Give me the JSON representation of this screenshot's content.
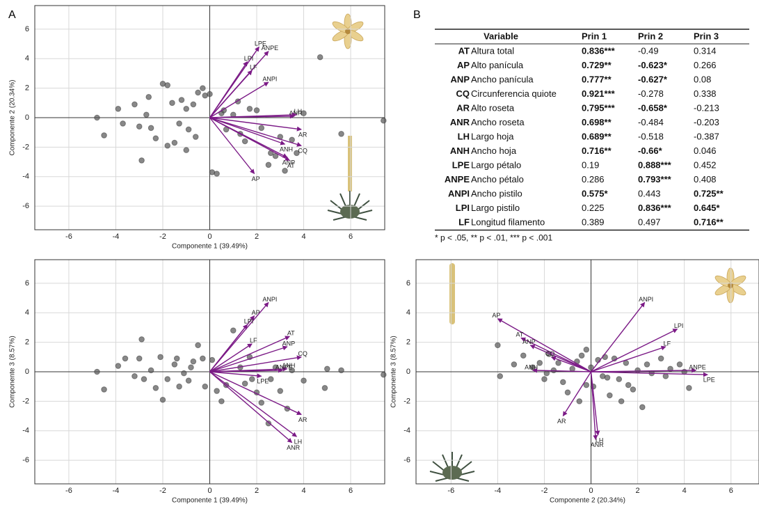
{
  "panel_labels": [
    "A",
    "B"
  ],
  "chart_data": [
    {
      "type": "biplot",
      "x_label": "Componente 1 (39.49%)",
      "y_label": "Componente 2 (20.34%)",
      "xlim": [
        -7.45,
        7.45
      ],
      "ylim": [
        -7.6,
        7.6
      ],
      "xticks": [
        -6,
        -4,
        -2,
        0,
        2,
        4,
        6
      ],
      "yticks": [
        -6,
        -4,
        -2,
        0,
        2,
        4,
        6
      ],
      "grid": true,
      "point_color": "#555555",
      "arrow_color": "#7b1a86",
      "points": {
        "x": [
          -4.8,
          -4.5,
          -3.7,
          -3.9,
          -3.2,
          -3.0,
          -2.9,
          -2.6,
          -2.5,
          -2.3,
          -2.0,
          -1.8,
          -1.5,
          -1.3,
          -1.2,
          -1.0,
          -0.9,
          -0.7,
          -0.5,
          -0.3,
          -0.2,
          0.0,
          0.1,
          0.3,
          0.5,
          0.7,
          1.0,
          1.3,
          1.5,
          1.7,
          2.0,
          2.2,
          2.5,
          2.8,
          3.0,
          3.2,
          3.5,
          4.0,
          4.7,
          5.6,
          7.4,
          -1.0,
          -1.8,
          -0.6,
          -2.7,
          -1.6,
          0.6,
          1.2,
          2.6,
          3.7
        ],
        "y": [
          0,
          -1.2,
          -0.4,
          0.6,
          0.9,
          -0.6,
          -2.9,
          1.4,
          -0.7,
          -1.4,
          2.3,
          2.2,
          -1.7,
          -0.4,
          1.2,
          0.6,
          -0.8,
          0.9,
          1.7,
          2.0,
          1.5,
          1.6,
          -3.7,
          -3.8,
          0.3,
          -0.8,
          0.2,
          -1.1,
          -1.6,
          0.6,
          0.5,
          -0.7,
          -3.2,
          -2.6,
          -1.3,
          -3.6,
          -1.5,
          0.3,
          4.1,
          -1.1,
          -0.2,
          -2.2,
          -1.9,
          -1.3,
          0.2,
          1.0,
          0.5,
          1.1,
          -2.4,
          -2.4
        ]
      },
      "loadings": {
        "labels": [
          "LPE",
          "ANPE",
          "LPI",
          "LF",
          "ANPI",
          "ANR",
          "LH",
          "AR",
          "ANH",
          "CQ",
          "ANP",
          "AT",
          "AP"
        ],
        "x": [
          2.1,
          2.5,
          1.6,
          1.8,
          2.5,
          3.6,
          3.7,
          3.9,
          3.2,
          3.9,
          3.3,
          3.4,
          1.9
        ],
        "y": [
          4.8,
          4.5,
          3.8,
          3.2,
          2.4,
          0.1,
          0.2,
          -0.8,
          -1.8,
          -1.9,
          -2.7,
          -2.9,
          -3.8
        ]
      }
    },
    {
      "type": "biplot",
      "x_label": "Componente 1 (39.49%)",
      "y_label": "Componente 3 (8.57%)",
      "xlim": [
        -7.45,
        7.45
      ],
      "ylim": [
        -7.6,
        7.6
      ],
      "xticks": [
        -6,
        -4,
        -2,
        0,
        2,
        4,
        6
      ],
      "yticks": [
        -6,
        -4,
        -2,
        0,
        2,
        4,
        6
      ],
      "grid": true,
      "point_color": "#555555",
      "arrow_color": "#7b1a86",
      "points": {
        "x": [
          -4.8,
          -4.5,
          -3.9,
          -3.6,
          -3.2,
          -3.0,
          -2.8,
          -2.9,
          -2.5,
          -2.3,
          -2.0,
          -1.8,
          -1.5,
          -1.4,
          -1.3,
          -1.1,
          -0.9,
          -0.7,
          -0.5,
          -0.3,
          -0.2,
          0.1,
          0.3,
          0.5,
          0.7,
          1.0,
          1.3,
          1.5,
          1.8,
          2.0,
          2.2,
          2.5,
          2.8,
          3.0,
          3.3,
          3.5,
          4.0,
          4.9,
          5.0,
          5.6,
          7.4,
          -2.1,
          -0.8,
          1.7,
          2.6
        ],
        "y": [
          0,
          -1.2,
          0.4,
          0.9,
          -0.3,
          0.9,
          -0.5,
          2.2,
          0.1,
          -1.1,
          -1.9,
          -0.5,
          0.5,
          0.9,
          -1.0,
          -0.1,
          -0.6,
          0.7,
          1.8,
          0.9,
          -1.0,
          0.8,
          -1.3,
          -2.0,
          -0.9,
          2.8,
          0.3,
          -0.8,
          -0.5,
          -1.4,
          -2.1,
          -3.5,
          0.3,
          -1.3,
          -2.5,
          0.1,
          -0.6,
          -1.1,
          0.2,
          0.1,
          -0.2,
          1.0,
          0.3,
          1.0,
          -0.5
        ]
      },
      "loadings": {
        "labels": [
          "ANPI",
          "AP",
          "LPI",
          "AT",
          "LF",
          "ANP",
          "CQ",
          "ANH",
          "ANPE",
          "LPE",
          "AR",
          "LH",
          "ANR"
        ],
        "x": [
          2.5,
          1.9,
          1.6,
          3.4,
          1.8,
          3.3,
          3.9,
          3.3,
          3.1,
          2.2,
          3.9,
          3.7,
          3.5
        ],
        "y": [
          4.7,
          3.8,
          3.2,
          2.4,
          1.9,
          1.7,
          1.0,
          0.2,
          0.1,
          -0.3,
          -2.9,
          -4.4,
          -4.8
        ]
      }
    },
    {
      "type": "biplot",
      "x_label": "Componente 2 (20.34%)",
      "y_label": "Componente 3 (8.57%)",
      "xlim": [
        -7.5,
        7.2
      ],
      "ylim": [
        -7.6,
        7.6
      ],
      "xticks": [
        -6,
        -4,
        -2,
        0,
        2,
        4,
        6
      ],
      "yticks": [
        -6,
        -4,
        -2,
        0,
        2,
        4,
        6
      ],
      "grid": true,
      "point_color": "#555555",
      "arrow_color": "#7b1a86",
      "points": {
        "x": [
          -4.0,
          -3.9,
          -3.3,
          -2.9,
          -2.5,
          -2.2,
          -2.0,
          -1.8,
          -1.6,
          -1.4,
          -1.2,
          -1.0,
          -0.8,
          -0.6,
          -0.5,
          -0.4,
          -0.2,
          0.0,
          0.1,
          0.3,
          0.5,
          0.6,
          0.8,
          1.0,
          1.2,
          1.3,
          1.5,
          1.8,
          2.0,
          2.2,
          2.4,
          2.6,
          3.0,
          3.2,
          3.4,
          3.8,
          4.2,
          4.0,
          -0.2,
          0.7,
          -1.9,
          1.6
        ],
        "y": [
          1.8,
          -0.3,
          0.5,
          1.1,
          0.3,
          0.6,
          -0.5,
          1.2,
          0.1,
          0.6,
          -0.7,
          -1.4,
          0.2,
          0.7,
          -2.0,
          1.1,
          -0.9,
          0.3,
          -1.0,
          0.8,
          -0.3,
          1.0,
          -1.6,
          0.9,
          -0.5,
          -2.0,
          0.6,
          -1.2,
          0.1,
          -2.4,
          0.5,
          -0.1,
          0.9,
          -0.3,
          0.2,
          0.5,
          -1.1,
          0,
          1.5,
          -0.4,
          -0.1,
          -0.9
        ]
      },
      "loadings": {
        "labels": [
          "ANPI",
          "LPI",
          "LF",
          "ANPE",
          "LPE",
          "AP",
          "AT",
          "ANP",
          "CQ",
          "ANH",
          "AR",
          "LH",
          "ANR"
        ],
        "x": [
          2.3,
          3.7,
          3.2,
          4.5,
          5.0,
          -4.0,
          -3.0,
          -2.6,
          -1.7,
          -2.5,
          -1.2,
          0.3,
          0.2
        ],
        "y": [
          4.7,
          2.9,
          1.7,
          0.1,
          -0.2,
          3.6,
          2.3,
          1.8,
          1.0,
          0.1,
          -3.0,
          -4.3,
          -4.6
        ]
      }
    }
  ],
  "table": {
    "header": [
      "Variable",
      "Prin 1",
      "Prin 2",
      "Prin 3"
    ],
    "rows": [
      {
        "code": "AT",
        "name": "Altura total",
        "values": [
          "0.836***",
          "-0.49",
          "0.314"
        ],
        "bold": [
          true,
          false,
          false
        ]
      },
      {
        "code": "AP",
        "name": "Alto panícula",
        "values": [
          "0.729**",
          "-0.623*",
          "0.266"
        ],
        "bold": [
          true,
          true,
          false
        ]
      },
      {
        "code": "ANP",
        "name": "Ancho panícula",
        "values": [
          "0.777**",
          "-0.627*",
          "0.08"
        ],
        "bold": [
          true,
          true,
          false
        ]
      },
      {
        "code": "CQ",
        "name": "Circunferencia quiote",
        "values": [
          "0.921***",
          "-0.278",
          "0.338"
        ],
        "bold": [
          true,
          false,
          false
        ]
      },
      {
        "code": "AR",
        "name": "Alto roseta",
        "values": [
          "0.795***",
          "-0.658*",
          "-0.213"
        ],
        "bold": [
          true,
          true,
          false
        ]
      },
      {
        "code": "ANR",
        "name": "Ancho roseta",
        "values": [
          "0.698**",
          "-0.484",
          "-0.203"
        ],
        "bold": [
          true,
          false,
          false
        ]
      },
      {
        "code": "LH",
        "name": "Largo hoja",
        "values": [
          "0.689**",
          "-0.518",
          "-0.387"
        ],
        "bold": [
          true,
          false,
          false
        ]
      },
      {
        "code": "ANH",
        "name": "Ancho hoja",
        "values": [
          "0.716**",
          "-0.66*",
          "0.046"
        ],
        "bold": [
          true,
          true,
          false
        ]
      },
      {
        "code": "LPE",
        "name": "Largo pétalo",
        "values": [
          "0.19",
          "0.888***",
          "0.452"
        ],
        "bold": [
          false,
          true,
          false
        ]
      },
      {
        "code": "ANPE",
        "name": "Ancho pétalo",
        "values": [
          "0.286",
          "0.793***",
          "0.408"
        ],
        "bold": [
          false,
          true,
          false
        ]
      },
      {
        "code": "ANPI",
        "name": "Ancho pistilo",
        "values": [
          "0.575*",
          "0.443",
          "0.725**"
        ],
        "bold": [
          true,
          false,
          true
        ]
      },
      {
        "code": "LPI",
        "name": "Largo pistilo",
        "values": [
          "0.225",
          "0.836***",
          "0.645*"
        ],
        "bold": [
          false,
          true,
          true
        ]
      },
      {
        "code": "LF",
        "name": "Longitud filamento",
        "values": [
          "0.389",
          "0.497",
          "0.716**"
        ],
        "bold": [
          false,
          false,
          true
        ]
      }
    ],
    "footnote": "* p < .05, ** p < .01, *** p < .001"
  }
}
